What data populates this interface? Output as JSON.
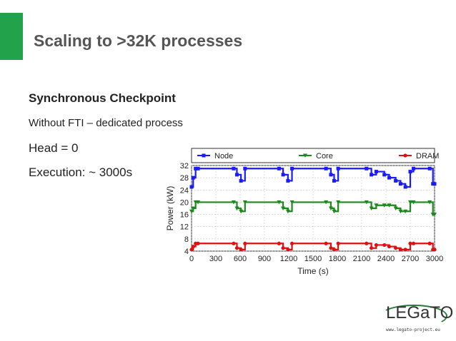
{
  "slide": {
    "title": "Scaling to >32K processes",
    "subheading": "Synchronous Checkpoint",
    "line1": "Without FTI – dedicated process",
    "line2": "Head = 0",
    "line3": "Execution: ~ 3000s"
  },
  "logo": {
    "word": "LEGaTO",
    "url": "www.legato-project.eu"
  },
  "colors": {
    "accent": "#22a24a",
    "node": "#1a1aff",
    "core": "#1a8a1a",
    "dram": "#e01010"
  },
  "chart_data": {
    "type": "line",
    "xlabel": "Time (s)",
    "ylabel": "Power (kW)",
    "xlim": [
      0,
      3000
    ],
    "ylim": [
      4,
      32
    ],
    "xticks": [
      0,
      300,
      600,
      900,
      1200,
      1500,
      1800,
      2100,
      2400,
      2700,
      3000
    ],
    "yticks": [
      4,
      8,
      12,
      16,
      20,
      24,
      28,
      32
    ],
    "grid": true,
    "legend_position": "top",
    "series": [
      {
        "name": "Node",
        "color": "#1a1aff",
        "marker": "square",
        "x": [
          0,
          20,
          50,
          80,
          520,
          560,
          610,
          660,
          1080,
          1130,
          1190,
          1240,
          1660,
          1720,
          1760,
          1810,
          2160,
          2220,
          2280,
          2380,
          2440,
          2520,
          2580,
          2640,
          2700,
          2740,
          2940,
          2980,
          3000
        ],
        "y": [
          25,
          28,
          31,
          31,
          31,
          29,
          27,
          31,
          31,
          29,
          27,
          31,
          31,
          29,
          27,
          31,
          31,
          29,
          30,
          29,
          28,
          27,
          26,
          25,
          30,
          31,
          31,
          26,
          26
        ]
      },
      {
        "name": "Core",
        "color": "#1a8a1a",
        "marker": "triangle-down",
        "x": [
          0,
          20,
          50,
          80,
          520,
          560,
          610,
          660,
          1080,
          1130,
          1190,
          1240,
          1660,
          1720,
          1760,
          1810,
          2160,
          2220,
          2280,
          2380,
          2440,
          2520,
          2580,
          2640,
          2700,
          2740,
          2940,
          2980,
          3000
        ],
        "y": [
          17,
          18,
          20,
          20,
          20,
          18,
          17,
          20,
          20,
          18,
          17,
          20,
          20,
          18,
          17,
          20,
          20,
          18,
          19,
          19,
          19,
          18,
          17,
          17,
          20,
          20,
          20,
          16,
          16
        ]
      },
      {
        "name": "DRAM",
        "color": "#e01010",
        "marker": "circle",
        "x": [
          0,
          20,
          50,
          80,
          520,
          560,
          610,
          660,
          1080,
          1130,
          1190,
          1240,
          1660,
          1720,
          1760,
          1810,
          2160,
          2220,
          2280,
          2380,
          2440,
          2520,
          2580,
          2640,
          2700,
          2740,
          2940,
          2980,
          3000
        ],
        "y": [
          4.5,
          5.5,
          6.5,
          6.5,
          6.5,
          5,
          4.5,
          6.5,
          6.5,
          5,
          4.5,
          6.5,
          6.5,
          5,
          4.5,
          6.5,
          6.5,
          5,
          6,
          6,
          5.5,
          5,
          4.5,
          4.5,
          6.5,
          6.5,
          6.5,
          4.5,
          4.5
        ]
      }
    ]
  }
}
